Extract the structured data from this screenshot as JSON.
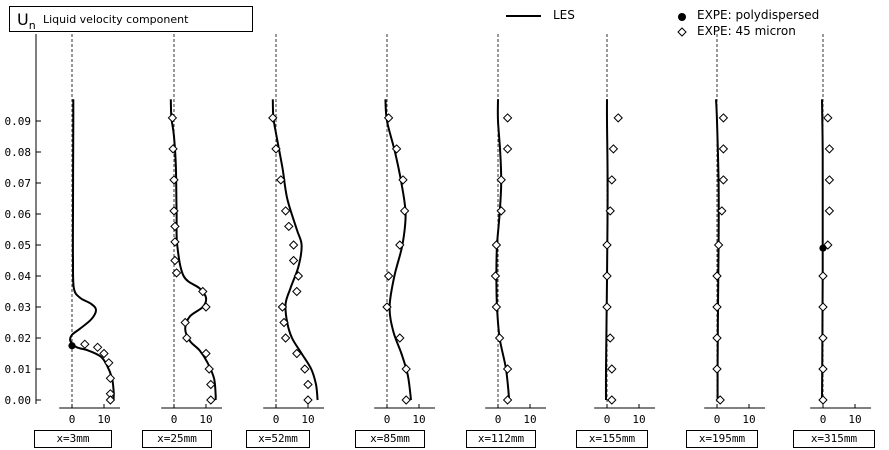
{
  "figure": {
    "title_symbol": "U",
    "title_subscript": "n",
    "title_text": "Liquid velocity component",
    "legend": {
      "les": "LES",
      "poly": "EXPE: polydispersed",
      "m45": "EXPE: 45 micron"
    },
    "colors": {
      "line": "#000000",
      "dash": "#000000",
      "marker_fill": "#000000"
    }
  },
  "chart_data": {
    "type": "line",
    "y_axis": {
      "ylim": [
        0.0,
        0.095
      ],
      "ticks": [
        "0.00",
        "0.01",
        "0.02",
        "0.03",
        "0.04",
        "0.05",
        "0.06",
        "0.07",
        "0.08",
        "0.09"
      ]
    },
    "x_ticks": [
      "0",
      "10"
    ],
    "panels": [
      {
        "label": "x=3mm",
        "les": [
          [
            0.4,
            0.097
          ],
          [
            0.4,
            0.09
          ],
          [
            0.3,
            0.06
          ],
          [
            0.3,
            0.045
          ],
          [
            0.6,
            0.036
          ],
          [
            2.5,
            0.033
          ],
          [
            6,
            0.031
          ],
          [
            7.5,
            0.029
          ],
          [
            6,
            0.026
          ],
          [
            2.5,
            0.023
          ],
          [
            0,
            0.021
          ],
          [
            -0.5,
            0.019
          ],
          [
            1.5,
            0.017
          ],
          [
            5,
            0.016
          ],
          [
            9,
            0.014
          ],
          [
            11,
            0.011
          ],
          [
            12.5,
            0.007
          ],
          [
            13,
            0.003
          ],
          [
            13,
            0.0
          ]
        ],
        "m45": [
          [
            4,
            0.018
          ],
          [
            8,
            0.017
          ],
          [
            10,
            0.015
          ],
          [
            11.5,
            0.012
          ],
          [
            12,
            0.007
          ],
          [
            12,
            0.002
          ],
          [
            12,
            0.0
          ]
        ],
        "poly": [
          [
            0,
            0.0175
          ]
        ]
      },
      {
        "label": "x=25mm",
        "les": [
          [
            -1,
            0.097
          ],
          [
            -0.8,
            0.091
          ],
          [
            0,
            0.085
          ],
          [
            0.6,
            0.075
          ],
          [
            0.8,
            0.06
          ],
          [
            1,
            0.05
          ],
          [
            3,
            0.04
          ],
          [
            8,
            0.036
          ],
          [
            10,
            0.033
          ],
          [
            9,
            0.03
          ],
          [
            5,
            0.027
          ],
          [
            3.5,
            0.023
          ],
          [
            5,
            0.019
          ],
          [
            8,
            0.016
          ],
          [
            10.5,
            0.012
          ],
          [
            12.5,
            0.007
          ],
          [
            13,
            0.002
          ],
          [
            13,
            0.0
          ]
        ],
        "m45": [
          [
            -0.5,
            0.091
          ],
          [
            -0.3,
            0.081
          ],
          [
            0,
            0.071
          ],
          [
            0,
            0.061
          ],
          [
            0.3,
            0.056
          ],
          [
            0.3,
            0.051
          ],
          [
            0.3,
            0.045
          ],
          [
            0.8,
            0.041
          ],
          [
            9,
            0.035
          ],
          [
            10,
            0.03
          ],
          [
            3.5,
            0.025
          ],
          [
            4,
            0.02
          ],
          [
            10,
            0.015
          ],
          [
            11,
            0.01
          ],
          [
            11.5,
            0.005
          ],
          [
            11.5,
            0.0
          ]
        ],
        "poly": []
      },
      {
        "label": "x=52mm",
        "les": [
          [
            -1,
            0.097
          ],
          [
            -0.8,
            0.091
          ],
          [
            0.2,
            0.085
          ],
          [
            2,
            0.075
          ],
          [
            3.5,
            0.065
          ],
          [
            6.5,
            0.055
          ],
          [
            8,
            0.05
          ],
          [
            7,
            0.043
          ],
          [
            4.5,
            0.036
          ],
          [
            3,
            0.031
          ],
          [
            3.5,
            0.025
          ],
          [
            5,
            0.02
          ],
          [
            8,
            0.015
          ],
          [
            11,
            0.01
          ],
          [
            12.5,
            0.005
          ],
          [
            13,
            0.0
          ]
        ],
        "m45": [
          [
            -1,
            0.091
          ],
          [
            0,
            0.081
          ],
          [
            1.5,
            0.071
          ],
          [
            3,
            0.061
          ],
          [
            4,
            0.056
          ],
          [
            5.5,
            0.05
          ],
          [
            5.5,
            0.045
          ],
          [
            7,
            0.04
          ],
          [
            6.5,
            0.035
          ],
          [
            2,
            0.03
          ],
          [
            2.5,
            0.025
          ],
          [
            3,
            0.02
          ],
          [
            6.5,
            0.015
          ],
          [
            9,
            0.01
          ],
          [
            10,
            0.005
          ],
          [
            10,
            0.0
          ]
        ],
        "poly": []
      },
      {
        "label": "x=85mm",
        "les": [
          [
            -0.5,
            0.097
          ],
          [
            0,
            0.09
          ],
          [
            2.5,
            0.08
          ],
          [
            4.5,
            0.07
          ],
          [
            5.8,
            0.06
          ],
          [
            4.8,
            0.05
          ],
          [
            2.3,
            0.04
          ],
          [
            0.8,
            0.03
          ],
          [
            2,
            0.022
          ],
          [
            4.5,
            0.015
          ],
          [
            6.5,
            0.008
          ],
          [
            7.5,
            0.0
          ]
        ],
        "m45": [
          [
            0.5,
            0.091
          ],
          [
            3,
            0.081
          ],
          [
            5,
            0.071
          ],
          [
            5.5,
            0.061
          ],
          [
            4,
            0.05
          ],
          [
            0.5,
            0.04
          ],
          [
            0,
            0.03
          ],
          [
            4,
            0.02
          ],
          [
            6,
            0.01
          ],
          [
            6,
            0.0
          ]
        ],
        "poly": []
      },
      {
        "label": "x=112mm",
        "les": [
          [
            0,
            0.097
          ],
          [
            0,
            0.09
          ],
          [
            0.7,
            0.08
          ],
          [
            1,
            0.07
          ],
          [
            0.5,
            0.06
          ],
          [
            -0.3,
            0.05
          ],
          [
            -0.5,
            0.04
          ],
          [
            -0.3,
            0.03
          ],
          [
            0.5,
            0.02
          ],
          [
            2.5,
            0.01
          ],
          [
            3.5,
            0.0
          ]
        ],
        "m45": [
          [
            3,
            0.091
          ],
          [
            3,
            0.081
          ],
          [
            1,
            0.071
          ],
          [
            1,
            0.061
          ],
          [
            -0.5,
            0.05
          ],
          [
            -0.8,
            0.04
          ],
          [
            -0.5,
            0.03
          ],
          [
            0.5,
            0.02
          ],
          [
            3,
            0.01
          ],
          [
            3,
            0.0
          ]
        ],
        "poly": []
      },
      {
        "label": "x=155mm",
        "les": [
          [
            0,
            0.097
          ],
          [
            0,
            0.09
          ],
          [
            0.2,
            0.07
          ],
          [
            0.1,
            0.05
          ],
          [
            -0.1,
            0.03
          ],
          [
            -0.3,
            0.01
          ],
          [
            -0.3,
            0.0
          ]
        ],
        "m45": [
          [
            3.5,
            0.091
          ],
          [
            2,
            0.081
          ],
          [
            1.5,
            0.071
          ],
          [
            1,
            0.061
          ],
          [
            0,
            0.05
          ],
          [
            0,
            0.04
          ],
          [
            0,
            0.03
          ],
          [
            1,
            0.02
          ],
          [
            1.5,
            0.01
          ],
          [
            1.5,
            0.0
          ]
        ],
        "poly": []
      },
      {
        "label": "x=195mm",
        "les": [
          [
            -0.3,
            0.097
          ],
          [
            0,
            0.09
          ],
          [
            0.5,
            0.07
          ],
          [
            0.5,
            0.05
          ],
          [
            0.3,
            0.03
          ],
          [
            0.2,
            0.01
          ],
          [
            0.2,
            0.0
          ]
        ],
        "m45": [
          [
            2,
            0.091
          ],
          [
            2,
            0.081
          ],
          [
            2,
            0.071
          ],
          [
            1.5,
            0.061
          ],
          [
            0.5,
            0.05
          ],
          [
            0,
            0.04
          ],
          [
            0,
            0.03
          ],
          [
            0,
            0.02
          ],
          [
            0,
            0.01
          ],
          [
            1,
            0.0
          ]
        ],
        "poly": []
      },
      {
        "label": "x=315mm",
        "les": [
          [
            -0.3,
            0.097
          ],
          [
            -0.1,
            0.08
          ],
          [
            -0.1,
            0.06
          ],
          [
            -0.1,
            0.04
          ],
          [
            -0.2,
            0.02
          ],
          [
            -0.3,
            0.0
          ]
        ],
        "m45": [
          [
            1.5,
            0.091
          ],
          [
            2,
            0.081
          ],
          [
            2,
            0.071
          ],
          [
            2,
            0.061
          ],
          [
            1.5,
            0.05
          ],
          [
            0,
            0.04
          ],
          [
            0,
            0.03
          ],
          [
            0,
            0.02
          ],
          [
            0,
            0.01
          ],
          [
            0,
            0.0
          ]
        ],
        "poly": [
          [
            0,
            0.049
          ]
        ]
      }
    ]
  }
}
